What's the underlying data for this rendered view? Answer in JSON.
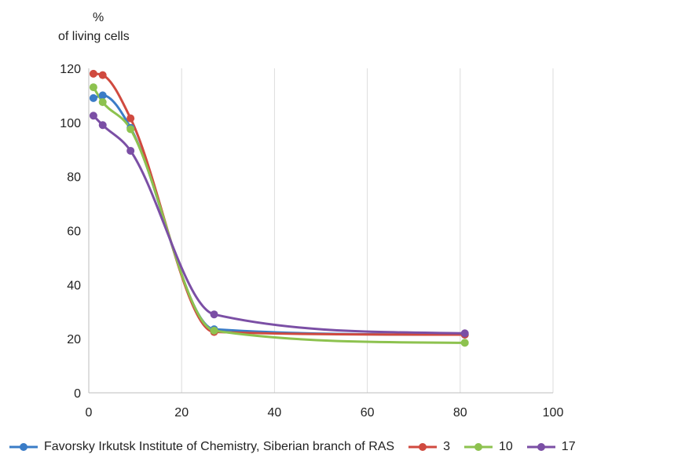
{
  "chart_data": {
    "type": "line",
    "title": "",
    "ylabel_lines": [
      "%",
      "of living cells"
    ],
    "xlabel": "",
    "xlim": [
      0,
      100
    ],
    "ylim": [
      0,
      120
    ],
    "x_ticks": [
      0,
      20,
      40,
      60,
      80,
      100
    ],
    "y_ticks": [
      0,
      20,
      40,
      60,
      80,
      100,
      120
    ],
    "grid": {
      "vertical": true,
      "horizontal": false
    },
    "legend_position": "bottom",
    "smooth": true,
    "x": [
      1,
      3,
      9,
      27,
      81
    ],
    "series": [
      {
        "name": "Favorsky Irkutsk Institute of Chemistry, Siberian branch of RAS",
        "color": "#3a7cc7",
        "values": [
          109,
          110,
          98,
          23.5,
          21.5
        ]
      },
      {
        "name": "3",
        "color": "#d04a3f",
        "values": [
          118,
          117.5,
          101.5,
          22.5,
          21.5
        ]
      },
      {
        "name": "10",
        "color": "#8dc24f",
        "values": [
          113,
          107.5,
          97.5,
          23,
          18.5
        ]
      },
      {
        "name": "17",
        "color": "#7b4fa5",
        "values": [
          102.5,
          99,
          89.5,
          29,
          22
        ]
      }
    ]
  }
}
